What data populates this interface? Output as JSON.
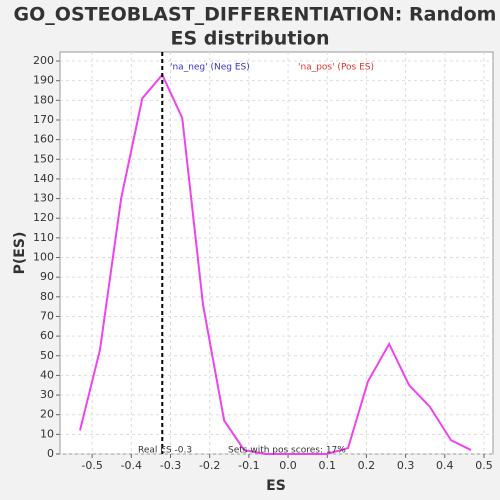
{
  "chart_data": {
    "type": "line",
    "title": [
      "GO_OSTEOBLAST_DIFFERENTIATION: Random",
      "ES distribution"
    ],
    "x_label": "ES",
    "y_label": "P(ES)",
    "x": [
      -0.531,
      -0.48,
      -0.426,
      -0.372,
      -0.321,
      -0.27,
      -0.217,
      -0.163,
      -0.112,
      -0.059,
      -0.005,
      0.046,
      0.099,
      0.153,
      0.204,
      0.258,
      0.309,
      0.362,
      0.416,
      0.467
    ],
    "series": [
      {
        "name": "ES distribution",
        "color": "#ee44ee",
        "values": [
          12,
          53,
          130,
          181,
          193,
          171,
          76,
          17,
          2,
          0,
          0,
          0,
          0,
          3,
          37,
          56,
          35,
          24,
          7,
          2
        ]
      }
    ],
    "xlim": [
      -0.582,
      0.523
    ],
    "ylim": [
      0,
      204.6
    ],
    "xticks": [
      -0.5,
      -0.4,
      -0.3,
      -0.2,
      -0.1,
      {
        "value": 0,
        "label": "0.0"
      },
      0.1,
      0.2,
      0.3,
      0.4,
      0.5
    ],
    "yticks": [
      0,
      10,
      20,
      30,
      40,
      50,
      60,
      70,
      80,
      90,
      100,
      110,
      120,
      130,
      140,
      150,
      160,
      170,
      180,
      190,
      200
    ],
    "grid": true,
    "real_es_line": -0.321,
    "legend": [
      {
        "text": "'na_neg' (Neg ES)",
        "color": "#3333cc"
      },
      {
        "text": "'na_pos' (Pos ES)",
        "color": "#dd3333"
      }
    ],
    "annotations": [
      "Real ES -0.3",
      "Sets with pos scores: 17%"
    ]
  }
}
